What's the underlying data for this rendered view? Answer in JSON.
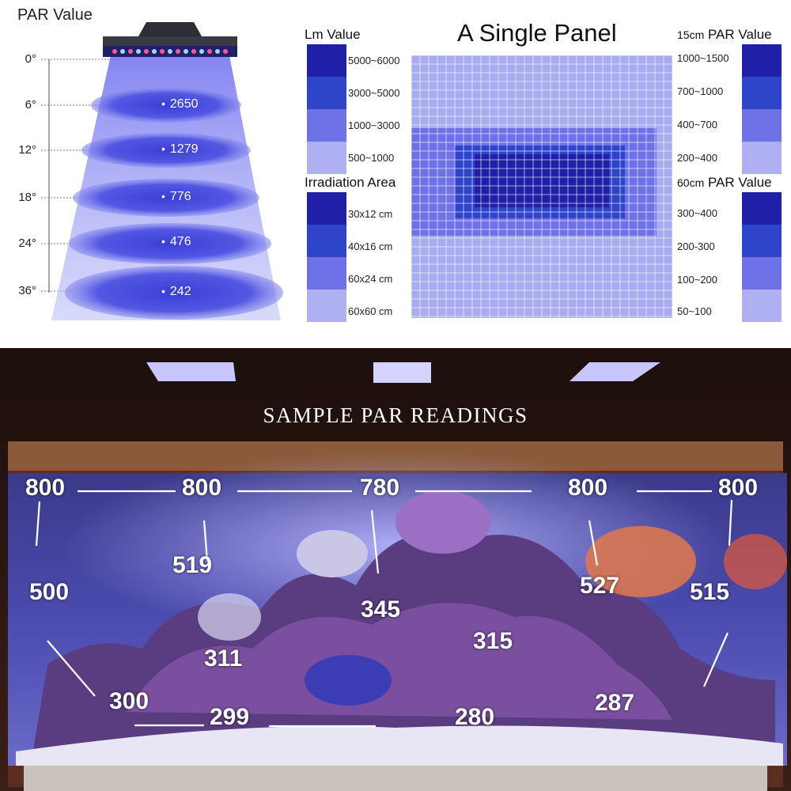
{
  "par_chart": {
    "title": "PAR Value",
    "angles": [
      "0°",
      "6°",
      "12°",
      "18°",
      "24°",
      "36°"
    ],
    "values": [
      "2650",
      "1279",
      "776",
      "476",
      "242"
    ]
  },
  "single_panel": {
    "title": "A Single Panel",
    "lm": {
      "title": "Lm Value",
      "ranges": [
        "5000~6000",
        "3000~5000",
        "1000~3000",
        "500~1000"
      ]
    },
    "irradiation": {
      "title": "Irradiation Area",
      "ranges": [
        "30x12 cm",
        "40x16 cm",
        "60x24 cm",
        "60x60 cm"
      ]
    },
    "par15": {
      "prefix": "15cm",
      "title": "PAR Value",
      "ranges": [
        "1000~1500",
        "700~1000",
        "400~700",
        "200~400"
      ]
    },
    "par60": {
      "prefix": "60cm",
      "title": "PAR Value",
      "ranges": [
        "300~400",
        "200-300",
        "100~200",
        "50~100"
      ]
    },
    "colors": [
      "#1f1fa8",
      "#2f45c9",
      "#6e72e6",
      "#aeb0f2"
    ]
  },
  "photo": {
    "title": "SAMPLE  PAR READINGS",
    "top_readings": [
      "800",
      "800",
      "780",
      "800",
      "800"
    ],
    "readings": [
      "519",
      "500",
      "345",
      "527",
      "515",
      "311",
      "315",
      "300",
      "299",
      "280",
      "287"
    ]
  }
}
